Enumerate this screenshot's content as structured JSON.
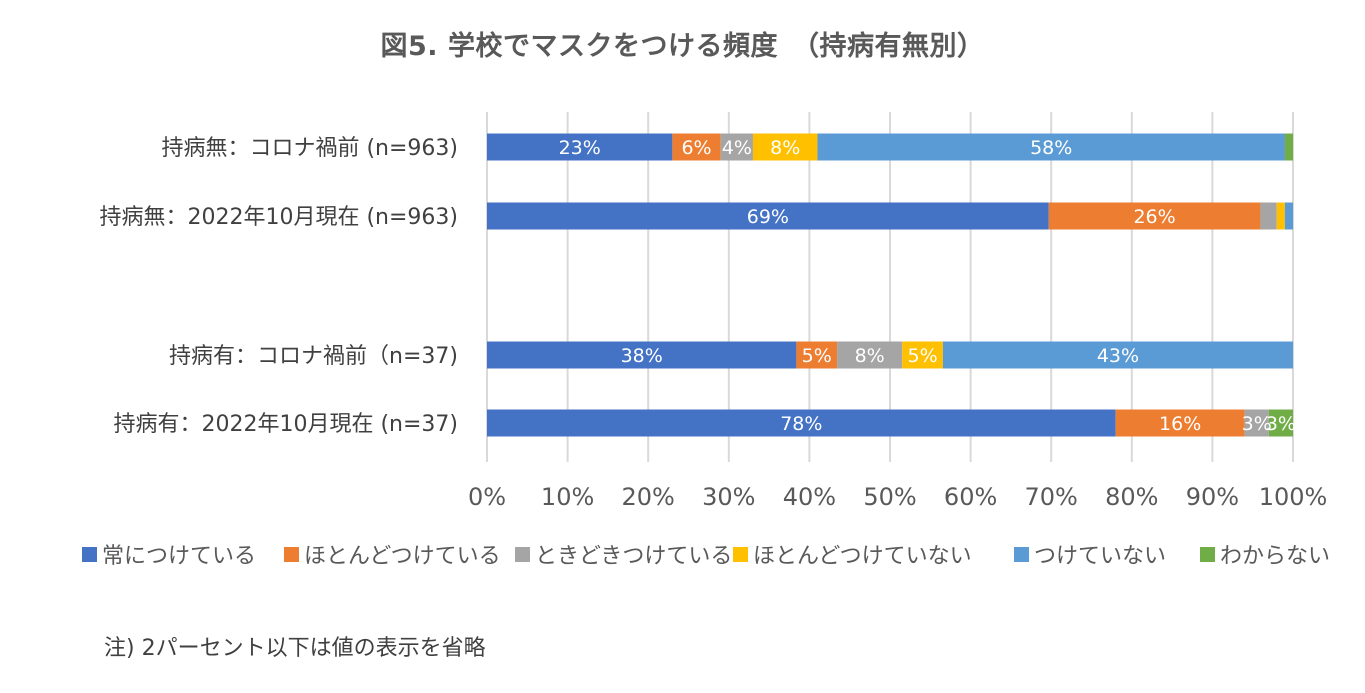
{
  "chart_data": {
    "type": "bar",
    "orientation": "horizontal",
    "stacked": "percent",
    "title": "図5. 学校でマスクをつける頻度　（持病有無別）",
    "categories": [
      "持病無：コロナ禍前 (n=963)",
      "持病無：2022年10月現在 (n=963)",
      "",
      "持病有：コロナ禍前（n=37)",
      "持病有：2022年10月現在 (n=37)"
    ],
    "series": [
      {
        "name": "常につけている",
        "color": "#4472C4",
        "values": [
          23,
          69,
          null,
          38,
          78
        ],
        "labels": [
          "23%",
          "69%",
          "",
          "38%",
          "78%"
        ]
      },
      {
        "name": "ほとんどつけている",
        "color": "#ED7D31",
        "values": [
          6,
          26,
          null,
          5,
          16
        ],
        "labels": [
          "6%",
          "26%",
          "",
          "5%",
          "16%"
        ]
      },
      {
        "name": "ときどきつけている",
        "color": "#A5A5A5",
        "values": [
          4,
          2,
          null,
          8,
          3
        ],
        "labels": [
          "4%",
          "",
          "",
          "8%",
          "3%"
        ]
      },
      {
        "name": "ほとんどつけていない",
        "color": "#FFC000",
        "values": [
          8,
          1,
          null,
          5,
          0
        ],
        "labels": [
          "8%",
          "",
          "",
          "5%",
          ""
        ]
      },
      {
        "name": "つけていない",
        "color": "#5B9BD5",
        "values": [
          58,
          1,
          null,
          43,
          0
        ],
        "labels": [
          "58%",
          "",
          "",
          "43%",
          ""
        ]
      },
      {
        "name": "わからない",
        "color": "#70AD47",
        "values": [
          1,
          0,
          null,
          0,
          3
        ],
        "labels": [
          "",
          "",
          "",
          "",
          "3%"
        ]
      }
    ],
    "x_ticks": [
      "0%",
      "10%",
      "20%",
      "30%",
      "40%",
      "50%",
      "60%",
      "70%",
      "80%",
      "90%",
      "100%"
    ],
    "xlim": [
      0,
      100
    ],
    "grid": true,
    "legend_position": "bottom"
  },
  "note": "注) 2パーセント以下は値の表示を省略"
}
